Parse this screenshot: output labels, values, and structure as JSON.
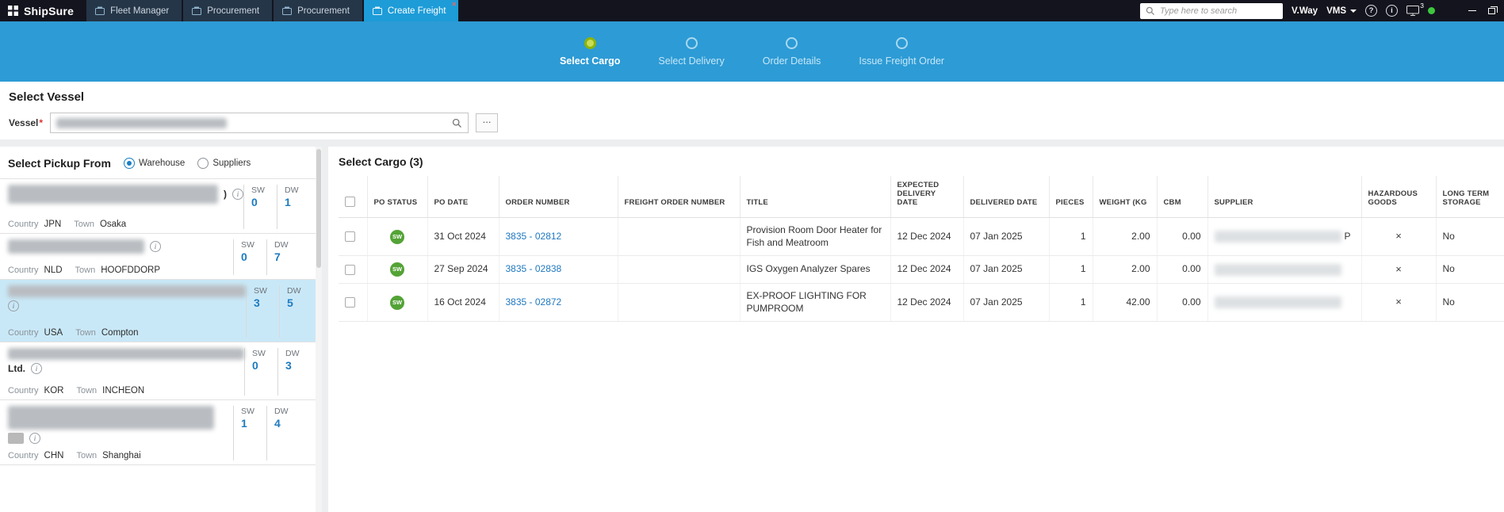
{
  "colors": {
    "titlebar_bg": "#14141e",
    "tab_bg": "#253648",
    "accent_blue": "#1d9cd8",
    "wizard_band": "#2d9bd5",
    "active_step_green": "#8db407",
    "badge_green": "#53a336",
    "link_blue": "#1f78c1",
    "selected_item_bg": "#c9e8f7",
    "close_red": "#ff6257",
    "status_green": "#3ec63e"
  },
  "icons": {
    "help": "?",
    "info": "i",
    "close": "×"
  },
  "titlebar": {
    "logo": "ShipSure",
    "tabs": [
      {
        "label": "Fleet Manager",
        "active": false
      },
      {
        "label": "Procurement",
        "active": false
      },
      {
        "label": "Procurement",
        "active": false
      },
      {
        "label": "Create Freight",
        "active": true
      }
    ],
    "search_placeholder": "Type here to search",
    "user_label": "V.Way",
    "vms_label": "VMS",
    "device_count": "3"
  },
  "wizard": {
    "steps": [
      {
        "label": "Select Cargo",
        "state": "active"
      },
      {
        "label": "Select Delivery",
        "state": "pending"
      },
      {
        "label": "Order Details",
        "state": "pending"
      },
      {
        "label": "Issue Freight Order",
        "state": "pending"
      }
    ]
  },
  "vessel": {
    "section_title": "Select Vessel",
    "field_label": "Vessel",
    "required_mark": "*",
    "browse_label": "..."
  },
  "pickup": {
    "title": "Select Pickup From",
    "options": [
      {
        "label": "Warehouse",
        "selected": true
      },
      {
        "label": "Suppliers",
        "selected": false
      }
    ],
    "country_label": "Country",
    "town_label": "Town",
    "sw_label": "SW",
    "dw_label": "DW",
    "items": [
      {
        "name_redacted": true,
        "name_suffix": ")",
        "country": "JPN",
        "town": "Osaka",
        "sw": "0",
        "dw": "1",
        "selected": false
      },
      {
        "name_redacted": true,
        "name_suffix": "",
        "country": "NLD",
        "town": "HOOFDDORP",
        "sw": "0",
        "dw": "7",
        "selected": false
      },
      {
        "name_redacted": true,
        "name_suffix": "",
        "country": "USA",
        "town": "Compton",
        "sw": "3",
        "dw": "5",
        "selected": true
      },
      {
        "name_redacted": true,
        "name_suffix": "",
        "second_line_text": "Ltd.",
        "country": "KOR",
        "town": "INCHEON",
        "sw": "0",
        "dw": "3",
        "selected": false
      },
      {
        "name_redacted": true,
        "name_suffix": "",
        "country": "CHN",
        "town": "Shanghai",
        "sw": "1",
        "dw": "4",
        "selected": false
      }
    ]
  },
  "cargo": {
    "title": "Select Cargo (3)",
    "columns": [
      "PO STATUS",
      "PO DATE",
      "ORDER NUMBER",
      "FREIGHT ORDER NUMBER",
      "TITLE",
      "EXPECTED DELIVERY DATE",
      "DELIVERED DATE",
      "PIECES",
      "WEIGHT (KG",
      "CBM",
      "SUPPLIER",
      "HAZARDOUS GOODS",
      "LONG TERM STORAGE"
    ],
    "rows": [
      {
        "po_status": "SW",
        "po_date": "31 Oct 2024",
        "order_number": "3835 - 02812",
        "freight_order_number": "",
        "title": "Provision Room Door Heater for Fish and Meatroom",
        "expected_delivery_date": "12 Dec 2024",
        "delivered_date": "07 Jan 2025",
        "pieces": "1",
        "weight": "2.00",
        "cbm": "0.00",
        "supplier_redacted": true,
        "supplier_visible": "P",
        "hazardous": "×",
        "long_term_storage": "No"
      },
      {
        "po_status": "SW",
        "po_date": "27 Sep 2024",
        "order_number": "3835 - 02838",
        "freight_order_number": "",
        "title": "IGS Oxygen Analyzer Spares",
        "expected_delivery_date": "12 Dec 2024",
        "delivered_date": "07 Jan 2025",
        "pieces": "1",
        "weight": "2.00",
        "cbm": "0.00",
        "supplier_redacted": true,
        "supplier_visible": "",
        "hazardous": "×",
        "long_term_storage": "No"
      },
      {
        "po_status": "SW",
        "po_date": "16 Oct 2024",
        "order_number": "3835 - 02872",
        "freight_order_number": "",
        "title": "EX-PROOF LIGHTING FOR PUMPROOM",
        "expected_delivery_date": "12 Dec 2024",
        "delivered_date": "07 Jan 2025",
        "pieces": "1",
        "weight": "42.00",
        "cbm": "0.00",
        "supplier_redacted": true,
        "supplier_visible": "",
        "hazardous": "×",
        "long_term_storage": "No"
      }
    ]
  }
}
